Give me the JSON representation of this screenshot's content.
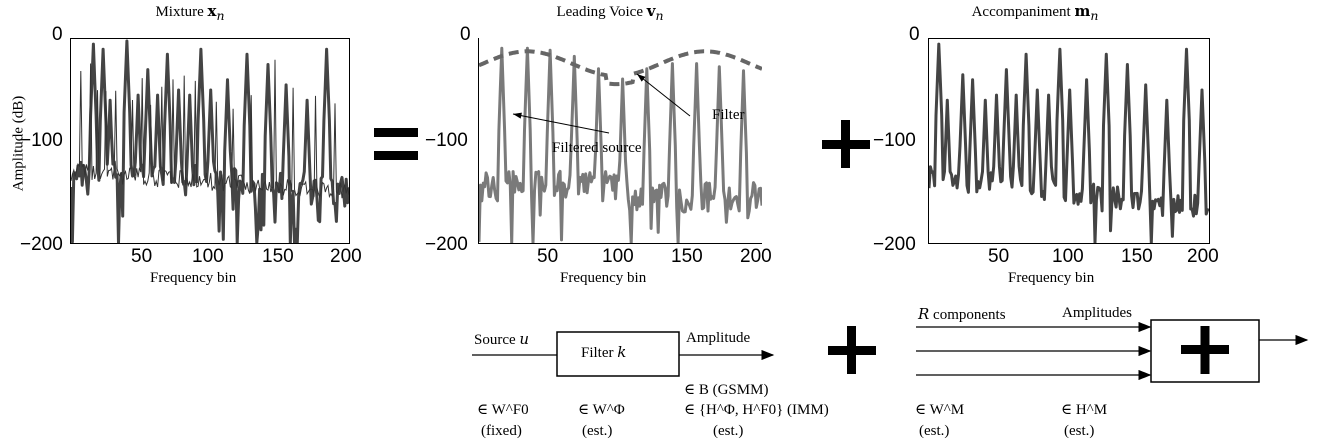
{
  "panels": [
    {
      "title_text": "Mixture ",
      "title_sym": "x",
      "title_sub": "n",
      "xlabel": "Frequency bin",
      "ylabel": "Amplitude (dB)"
    },
    {
      "title_text": "Leading Voice ",
      "title_sym": "v",
      "title_sub": "n",
      "xlabel": "Frequency bin",
      "ylabel": ""
    },
    {
      "title_text": "Accompaniment ",
      "title_sym": "m",
      "title_sub": "n",
      "xlabel": "Frequency bin",
      "ylabel": ""
    }
  ],
  "ticks": {
    "y": [
      "0",
      "−100",
      "−200"
    ],
    "x": [
      "50",
      "100",
      "150",
      "200"
    ]
  },
  "annotations": {
    "filter": "Filter",
    "filtered_source": "Filtered source"
  },
  "diagram": {
    "source_label": "Source",
    "source_sym": "u",
    "filter_label": "Filter",
    "filter_sym": "k",
    "amplitude_label": "Amplitude",
    "components_sym": "R",
    "components_label": "components",
    "amplitudes_label": "Amplitudes",
    "row1": [
      "∈ W^F0",
      "∈ W^Φ",
      "∈ B (GSMM)",
      "∈ {H^Φ, H^F0} (IMM)",
      "∈ W^M",
      "∈ H^M"
    ],
    "row2": [
      "(fixed)",
      "(est.)",
      "(est.)",
      "(est.)",
      "(est.)"
    ]
  },
  "chart_data": [
    {
      "type": "line",
      "title": "Mixture x_n",
      "xlabel": "Frequency bin",
      "ylabel": "Amplitude (dB)",
      "xlim": [
        1,
        200
      ],
      "ylim": [
        -200,
        0
      ],
      "xticks": [
        50,
        100,
        150,
        200
      ],
      "yticks": [
        0,
        -100,
        -200
      ],
      "series": [
        {
          "peaks_x": [
            17,
            24,
            29,
            41,
            49,
            56,
            63,
            70,
            78,
            86,
            94,
            101,
            113,
            127,
            142,
            155,
            170,
            184
          ],
          "peaks_y": [
            -5,
            -10,
            -60,
            -2,
            -55,
            -30,
            -55,
            -15,
            -50,
            -55,
            -10,
            -50,
            -40,
            -15,
            -25,
            -45,
            -60,
            -10
          ]
        }
      ]
    },
    {
      "type": "line",
      "title": "Leading Voice v_n",
      "xlabel": "Frequency bin",
      "ylabel": "",
      "xlim": [
        1,
        200
      ],
      "ylim": [
        -200,
        0
      ],
      "xticks": [
        50,
        100,
        150,
        200
      ],
      "yticks": [
        0,
        -100,
        -200
      ],
      "series": [
        {
          "peaks_x": [
            17,
            35,
            51,
            68,
            85,
            102,
            119,
            137,
            154,
            170,
            187
          ],
          "peaks_y": [
            -10,
            -10,
            -12,
            -18,
            -30,
            -40,
            -30,
            -25,
            -25,
            -28,
            -32
          ]
        }
      ]
    },
    {
      "type": "line",
      "title": "Accompaniment m_n",
      "xlabel": "Frequency bin",
      "ylabel": "",
      "xlim": [
        1,
        200
      ],
      "ylim": [
        -200,
        0
      ],
      "xticks": [
        50,
        100,
        150,
        200
      ],
      "yticks": [
        0,
        -100,
        -200
      ],
      "series": [
        {
          "peaks_x": [
            8,
            14,
            25,
            32,
            41,
            49,
            56,
            63,
            70,
            78,
            86,
            94,
            101,
            113,
            127,
            142,
            155,
            170,
            184,
            195
          ],
          "peaks_y": [
            -5,
            -60,
            -35,
            -40,
            -60,
            -55,
            -30,
            -55,
            -15,
            -50,
            -55,
            -10,
            -50,
            -40,
            -15,
            -25,
            -45,
            -60,
            -10,
            -50
          ]
        }
      ]
    }
  ]
}
